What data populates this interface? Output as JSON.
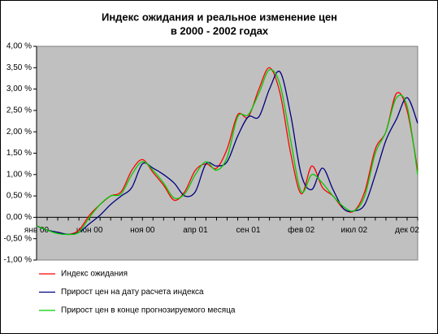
{
  "chart_data": {
    "type": "line",
    "title": [
      "Индекс ожидания и реальное изменение цен",
      "в 2000 - 2002 годах"
    ],
    "categories": [
      "янв 00",
      null,
      null,
      null,
      null,
      "июн 00",
      null,
      null,
      null,
      null,
      "ноя 00",
      null,
      null,
      null,
      null,
      "апр 01",
      null,
      null,
      null,
      null,
      "сен 01",
      null,
      null,
      null,
      null,
      "фев 02",
      null,
      null,
      null,
      null,
      "июл 02",
      null,
      null,
      null,
      null,
      "дек 02",
      null
    ],
    "series": [
      {
        "name": "Индекс ожидания",
        "color": "#ff0000",
        "values": [
          -0.2,
          -0.3,
          -0.35,
          -0.4,
          -0.3,
          0.05,
          0.3,
          0.5,
          0.6,
          1.1,
          1.35,
          1.05,
          0.75,
          0.4,
          0.6,
          1.1,
          1.25,
          1.15,
          1.6,
          2.4,
          2.35,
          3.0,
          3.5,
          2.9,
          1.5,
          0.55,
          1.2,
          0.7,
          0.5,
          0.2,
          0.15,
          0.6,
          1.6,
          2.0,
          2.9,
          2.5,
          1.1
        ]
      },
      {
        "name": "Прирост цен на дату расчета индекса",
        "color": "#000080",
        "values": [
          -0.2,
          -0.3,
          -0.35,
          -0.4,
          -0.35,
          -0.15,
          0.05,
          0.3,
          0.5,
          0.7,
          1.25,
          1.15,
          1.0,
          0.8,
          0.5,
          0.6,
          1.25,
          1.2,
          1.3,
          1.9,
          2.35,
          2.35,
          3.0,
          3.4,
          2.4,
          1.0,
          0.65,
          1.15,
          0.65,
          0.2,
          0.15,
          0.3,
          1.0,
          1.8,
          2.3,
          2.8,
          2.2
        ]
      },
      {
        "name": "Прирост цен в конце прогнозируемого месяца",
        "color": "#00cc00",
        "values": [
          -0.2,
          -0.3,
          -0.38,
          -0.4,
          -0.35,
          0.0,
          0.3,
          0.5,
          0.55,
          1.0,
          1.3,
          1.1,
          0.8,
          0.45,
          0.55,
          1.0,
          1.3,
          1.1,
          1.4,
          2.35,
          2.4,
          2.9,
          3.45,
          3.1,
          1.8,
          0.6,
          1.0,
          0.8,
          0.5,
          0.25,
          0.15,
          0.5,
          1.5,
          2.0,
          2.8,
          2.6,
          1.0
        ]
      }
    ],
    "ylim": [
      -1,
      4
    ],
    "yticks": [
      {
        "value": -1,
        "label": "-1,00 %"
      },
      {
        "value": -0.5,
        "label": "-0,50 %"
      },
      {
        "value": 0,
        "label": "0,00 %"
      },
      {
        "value": 0.5,
        "label": "0,50 %"
      },
      {
        "value": 1,
        "label": "1,00 %"
      },
      {
        "value": 1.5,
        "label": "1,50 %"
      },
      {
        "value": 2,
        "label": "2,00 %"
      },
      {
        "value": 2.5,
        "label": "2,50 %"
      },
      {
        "value": 3,
        "label": "3,00 %"
      },
      {
        "value": 3.5,
        "label": "3,50 %"
      },
      {
        "value": 4,
        "label": "4,00 %"
      }
    ],
    "grid": false,
    "plot_background": "#c0c0c0",
    "legend": "bottom-left"
  }
}
